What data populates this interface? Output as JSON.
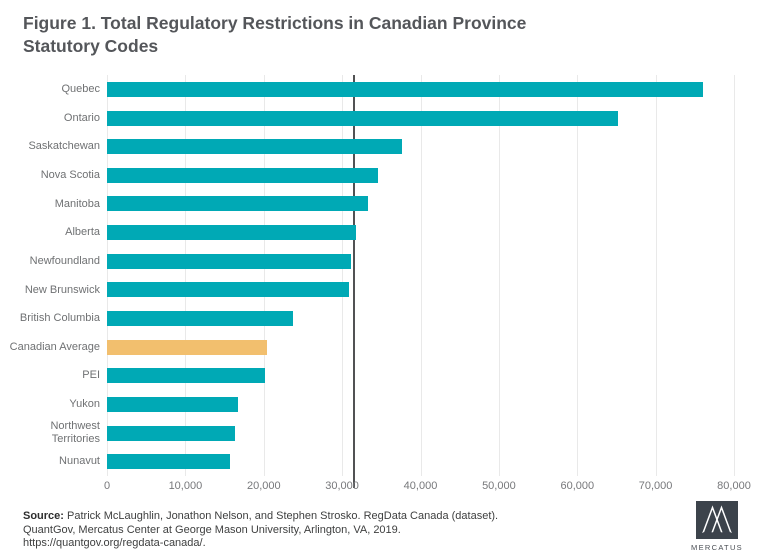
{
  "title": {
    "line1": "Figure 1. Total Regulatory Restrictions in Canadian Province",
    "line2": "Statutory Codes"
  },
  "chart_data": {
    "type": "bar",
    "orientation": "horizontal",
    "title": "Figure 1. Total Regulatory Restrictions in Canadian Province Statutory Codes",
    "categories": [
      "Quebec",
      "Ontario",
      "Saskatchewan",
      "Nova Scotia",
      "Manitoba",
      "Alberta",
      "Newfoundland",
      "New Brunswick",
      "British Columbia",
      "Canadian Average",
      "PEI",
      "Yukon",
      "Northwest Territories",
      "Nunavut"
    ],
    "values": [
      76100,
      65200,
      37600,
      34600,
      33300,
      31800,
      31100,
      30900,
      23700,
      20400,
      20200,
      16700,
      16300,
      15700
    ],
    "highlight_category": "Canadian Average",
    "bar_color": "#00A9B5",
    "highlight_color": "#F2BF6E",
    "xlim": [
      0,
      80000
    ],
    "xticks": [
      0,
      10000,
      20000,
      30000,
      40000,
      50000,
      60000,
      70000,
      80000
    ],
    "xtick_labels": [
      "0",
      "10,000",
      "20,000",
      "30,000",
      "40,000",
      "50,000",
      "60,000",
      "70,000",
      "80,000"
    ],
    "reference_line": {
      "value": 31400,
      "color": "#515254"
    },
    "grid": true,
    "gridline_color": "#E9E9E9",
    "legend": "none"
  },
  "source": {
    "label": "Source:",
    "line1_rest": " Patrick McLaughlin, Jonathon Nelson, and Stephen Strosko. RegData Canada (dataset).",
    "line2": "QuantGov, Mercatus Center at George Mason University,  Arlington, VA, 2019.",
    "line3": "https://quantgov.org/regdata-canada/."
  },
  "logo": {
    "text": "MERCATUS"
  }
}
